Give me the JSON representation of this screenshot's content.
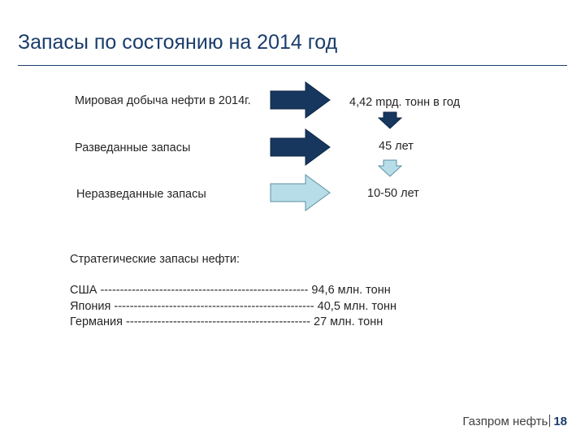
{
  "title": "Запасы по состоянию на 2014 год",
  "rows": [
    {
      "label": "Мировая добыча нефти в 2014г.",
      "value": "4,42 mрд. тонн в год"
    },
    {
      "label": "Разведанные запасы",
      "value": "45 лет"
    },
    {
      "label": "Неразведанные запасы",
      "value": "10-50 лет"
    }
  ],
  "strategic": {
    "heading": "Стратегические запасы нефти:",
    "countries": [
      {
        "text": "США -----------------------------------------------------  94,6 млн. тонн"
      },
      {
        "text": "Япония ---------------------------------------------------  40,5 млн. тонн"
      },
      {
        "text": "Германия -----------------------------------------------  27 млн. тонн"
      }
    ]
  },
  "footer": {
    "company": "Газпром нефть",
    "page": "18"
  },
  "colors": {
    "dark_arrow": "#17375e",
    "light_arrow": "#b7dde8",
    "accent": "#1a3d6b"
  }
}
